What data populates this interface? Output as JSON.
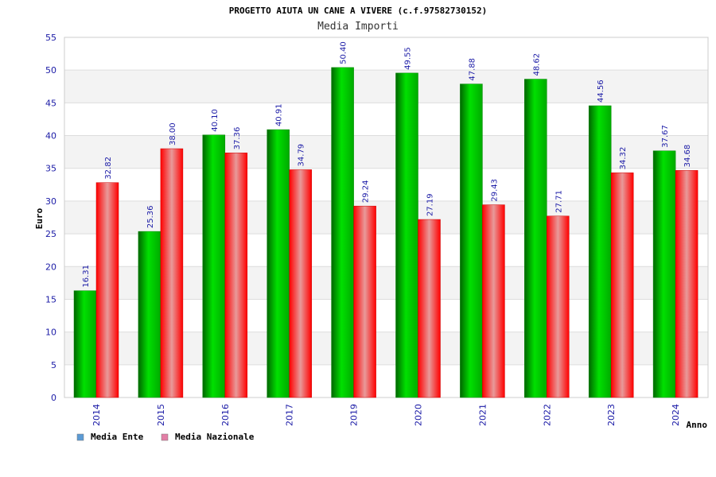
{
  "chart_data": {
    "type": "bar",
    "title": "PROGETTO AIUTA UN CANE A VIVERE (c.f.97582730152)",
    "subtitle": "Media Importi",
    "xlabel": "Anno",
    "ylabel": "Euro",
    "ylim": [
      0,
      55
    ],
    "yticks": [
      0,
      5,
      10,
      15,
      20,
      25,
      30,
      35,
      40,
      45,
      50,
      55
    ],
    "grid": true,
    "legend_position": "bottom-left",
    "categories": [
      "2014",
      "2015",
      "2016",
      "2017",
      "2019",
      "2020",
      "2021",
      "2022",
      "2023",
      "2024"
    ],
    "series": [
      {
        "name": "Media Ente",
        "color": "#00c000",
        "legend_color": "#5b9bd5",
        "values": [
          16.31,
          25.36,
          40.1,
          40.91,
          50.4,
          49.55,
          47.88,
          48.62,
          44.56,
          37.67
        ],
        "labels": [
          "16.31",
          "25.36",
          "40.10",
          "40.91",
          "50.40",
          "49.55",
          "47.88",
          "48.62",
          "44.56",
          "37.67"
        ]
      },
      {
        "name": "Media Nazionale",
        "color": "#ff0000",
        "legend_color": "#e37fa6",
        "values": [
          32.82,
          38.0,
          37.36,
          34.79,
          29.24,
          27.19,
          29.43,
          27.71,
          34.32,
          34.68
        ],
        "labels": [
          "32.82",
          "38.00",
          "37.36",
          "34.79",
          "29.24",
          "27.19",
          "29.43",
          "27.71",
          "34.32",
          "34.68"
        ]
      }
    ]
  }
}
